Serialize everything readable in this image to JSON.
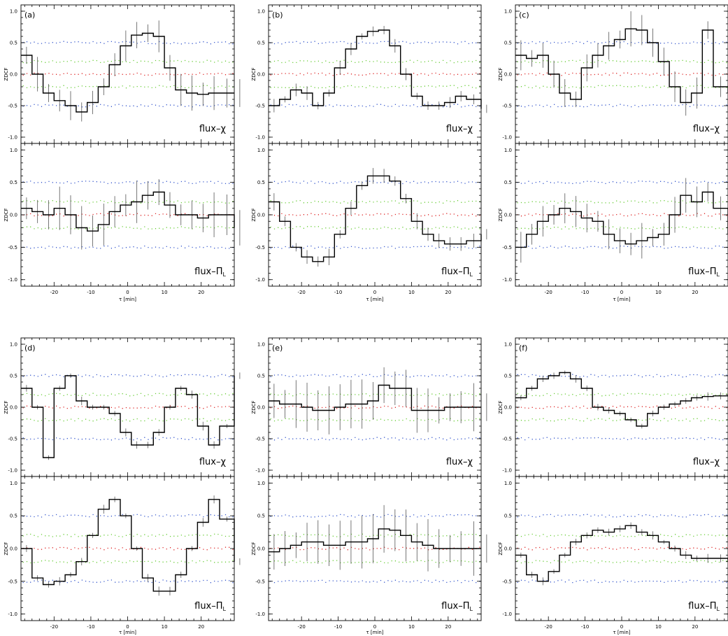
{
  "chart_data": {
    "type": "line",
    "description_axes": "ZDCF vs tau",
    "xlabel": "τ [min]",
    "ylabel": "ZDCF",
    "xlim": [
      -29,
      29
    ],
    "ylim": [
      -1.1,
      1.1
    ],
    "xticks": [
      -20,
      -10,
      0,
      10,
      20
    ],
    "yticks": [
      -1.0,
      -0.5,
      0.0,
      0.5,
      1.0
    ],
    "reference_levels": [
      {
        "name": "blue",
        "color": "#3355cc",
        "values": [
          -0.5,
          0.5
        ]
      },
      {
        "name": "green",
        "color": "#66cc33",
        "values": [
          -0.2,
          0.2
        ]
      },
      {
        "name": "red",
        "color": "#dd2222",
        "values": [
          0.0
        ]
      }
    ],
    "panels": [
      {
        "label": "(a)",
        "top": {
          "label": "flux–χ",
          "x": [
            -29,
            -26,
            -23,
            -20,
            -17,
            -14,
            -11,
            -8,
            -5,
            -2,
            1,
            4,
            7,
            10,
            13,
            16,
            19,
            22,
            25,
            29
          ],
          "y": [
            0.3,
            0.0,
            -0.3,
            -0.42,
            -0.5,
            -0.6,
            -0.45,
            -0.2,
            0.15,
            0.45,
            0.62,
            0.65,
            0.6,
            0.1,
            -0.25,
            -0.3,
            -0.32,
            -0.3,
            -0.3,
            -0.3
          ],
          "err": 0.2
        },
        "bottom": {
          "label": "flux–Π_L",
          "x": [
            -29,
            -26,
            -23,
            -20,
            -17,
            -14,
            -11,
            -8,
            -5,
            -2,
            1,
            4,
            7,
            10,
            13,
            16,
            19,
            22,
            25,
            29
          ],
          "y": [
            0.1,
            0.05,
            0.0,
            0.1,
            0.0,
            -0.2,
            -0.25,
            -0.15,
            0.05,
            0.15,
            0.2,
            0.3,
            0.35,
            0.15,
            0.0,
            0.0,
            -0.05,
            0.0,
            0.0,
            -0.2
          ],
          "err": 0.25
        }
      },
      {
        "label": "(b)",
        "top": {
          "label": "flux–χ",
          "x": [
            -29,
            -26,
            -23,
            -20,
            -17,
            -14,
            -11,
            -8,
            -5,
            -2,
            1,
            4,
            7,
            10,
            13,
            16,
            19,
            22,
            25,
            29
          ],
          "y": [
            -0.5,
            -0.4,
            -0.25,
            -0.3,
            -0.5,
            -0.3,
            0.1,
            0.4,
            0.6,
            0.68,
            0.7,
            0.45,
            0.0,
            -0.35,
            -0.5,
            -0.5,
            -0.45,
            -0.35,
            -0.4,
            -0.55
          ],
          "err": 0.08
        },
        "bottom": {
          "label": "flux–Π_L",
          "x": [
            -29,
            -26,
            -23,
            -20,
            -17,
            -14,
            -11,
            -8,
            -5,
            -2,
            1,
            4,
            7,
            10,
            13,
            16,
            19,
            22,
            25,
            29
          ],
          "y": [
            0.2,
            -0.1,
            -0.5,
            -0.65,
            -0.72,
            -0.65,
            -0.3,
            0.1,
            0.45,
            0.6,
            0.6,
            0.52,
            0.25,
            -0.1,
            -0.3,
            -0.4,
            -0.45,
            -0.45,
            -0.4,
            -0.3
          ],
          "err": 0.1
        }
      },
      {
        "label": "(c)",
        "top": {
          "label": "flux–χ",
          "x": [
            -29,
            -26,
            -23,
            -20,
            -17,
            -14,
            -11,
            -8,
            -5,
            -2,
            1,
            4,
            7,
            10,
            13,
            16,
            19,
            22,
            25,
            29
          ],
          "y": [
            0.3,
            0.25,
            0.3,
            0.0,
            -0.3,
            -0.4,
            0.1,
            0.3,
            0.45,
            0.55,
            0.72,
            0.7,
            0.5,
            0.2,
            -0.2,
            -0.45,
            -0.3,
            0.7,
            -0.2,
            -0.3
          ],
          "err": 0.2
        },
        "bottom": {
          "label": "flux–Π_L",
          "x": [
            -29,
            -26,
            -23,
            -20,
            -17,
            -14,
            -11,
            -8,
            -5,
            -2,
            1,
            4,
            7,
            10,
            13,
            16,
            19,
            22,
            25,
            29
          ],
          "y": [
            -0.5,
            -0.3,
            -0.1,
            0.0,
            0.1,
            0.05,
            -0.05,
            -0.1,
            -0.3,
            -0.4,
            -0.45,
            -0.4,
            -0.35,
            -0.3,
            0.0,
            0.3,
            0.2,
            0.35,
            0.1,
            -0.3
          ],
          "err": 0.2
        }
      },
      {
        "label": "(d)",
        "top": {
          "label": "flux–χ",
          "x": [
            -29,
            -26,
            -23,
            -20,
            -17,
            -14,
            -11,
            -8,
            -5,
            -2,
            1,
            4,
            7,
            10,
            13,
            16,
            19,
            22,
            25,
            29
          ],
          "y": [
            0.3,
            0.0,
            -0.8,
            0.3,
            0.5,
            0.1,
            0.0,
            0.0,
            -0.1,
            -0.4,
            -0.6,
            -0.6,
            -0.4,
            0.0,
            0.3,
            0.2,
            -0.3,
            -0.6,
            -0.3,
            0.5
          ],
          "err": 0.05
        },
        "bottom": {
          "label": "flux–Π_L",
          "x": [
            -29,
            -26,
            -23,
            -20,
            -17,
            -14,
            -11,
            -8,
            -5,
            -2,
            1,
            4,
            7,
            10,
            13,
            16,
            19,
            22,
            25,
            29
          ],
          "y": [
            0.0,
            -0.45,
            -0.55,
            -0.5,
            -0.4,
            -0.2,
            0.2,
            0.6,
            0.75,
            0.5,
            0.0,
            -0.45,
            -0.65,
            -0.65,
            -0.4,
            0.0,
            0.4,
            0.75,
            0.45,
            -0.2
          ],
          "err": 0.05
        }
      },
      {
        "label": "(e)",
        "top": {
          "label": "flux–χ",
          "x": [
            -29,
            -26,
            -23,
            -20,
            -17,
            -14,
            -11,
            -8,
            -5,
            -2,
            1,
            4,
            7,
            10,
            13,
            16,
            19,
            22,
            25,
            29
          ],
          "y": [
            0.1,
            0.05,
            0.05,
            0.0,
            -0.05,
            -0.05,
            0.0,
            0.05,
            0.05,
            0.1,
            0.35,
            0.3,
            0.3,
            -0.05,
            -0.05,
            -0.05,
            0.0,
            0.0,
            0.0,
            0.0
          ],
          "err": 0.3
        },
        "bottom": {
          "label": "flux–Π_L",
          "x": [
            -29,
            -26,
            -23,
            -20,
            -17,
            -14,
            -11,
            -8,
            -5,
            -2,
            1,
            4,
            7,
            10,
            13,
            16,
            19,
            22,
            25,
            29
          ],
          "y": [
            -0.05,
            0.0,
            0.05,
            0.1,
            0.1,
            0.05,
            0.05,
            0.1,
            0.1,
            0.15,
            0.3,
            0.28,
            0.2,
            0.1,
            0.05,
            0.0,
            0.0,
            0.0,
            0.0,
            0.0
          ],
          "err": 0.3
        }
      },
      {
        "label": "(f)",
        "top": {
          "label": "flux–χ",
          "x": [
            -29,
            -26,
            -23,
            -20,
            -17,
            -14,
            -11,
            -8,
            -5,
            -2,
            1,
            4,
            7,
            10,
            13,
            16,
            19,
            22,
            25,
            29
          ],
          "y": [
            0.15,
            0.3,
            0.45,
            0.5,
            0.55,
            0.45,
            0.3,
            0.0,
            -0.05,
            -0.1,
            -0.2,
            -0.3,
            -0.1,
            0.0,
            0.05,
            0.1,
            0.15,
            0.17,
            0.18,
            0.18
          ],
          "err": 0.05
        },
        "bottom": {
          "label": "flux–Π_L",
          "x": [
            -29,
            -26,
            -23,
            -20,
            -17,
            -14,
            -11,
            -8,
            -5,
            -2,
            1,
            4,
            7,
            10,
            13,
            16,
            19,
            22,
            25,
            29
          ],
          "y": [
            -0.1,
            -0.4,
            -0.5,
            -0.35,
            -0.1,
            0.1,
            0.2,
            0.28,
            0.25,
            0.3,
            0.35,
            0.25,
            0.2,
            0.1,
            0.0,
            -0.1,
            -0.15,
            -0.15,
            -0.15,
            -0.2
          ],
          "err": 0.05
        }
      }
    ]
  }
}
